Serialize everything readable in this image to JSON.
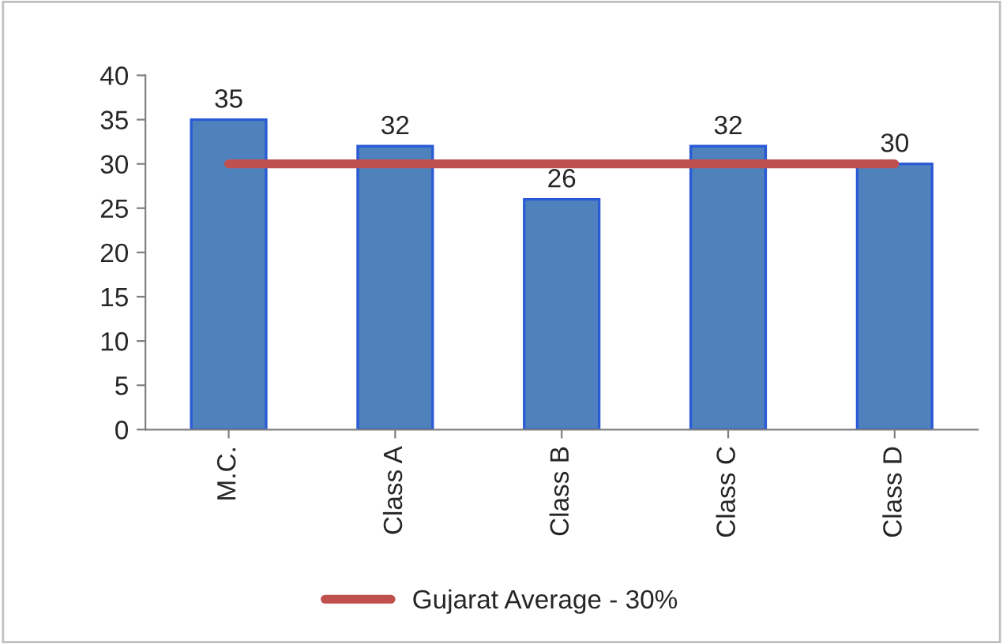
{
  "chart_data": {
    "type": "bar",
    "categories": [
      "M.C.",
      "Class A",
      "Class B",
      "Class C",
      "Class D"
    ],
    "series": [
      {
        "color": "#4f81bd",
        "values": [
          35,
          32,
          26,
          32,
          30
        ],
        "value_labels": [
          "35",
          "32",
          "26",
          "32",
          "30"
        ]
      },
      {
        "type": "line",
        "name": "Gujarat Average - 30%",
        "color": "#c0504d",
        "values": [
          30,
          30,
          30,
          30,
          30
        ]
      }
    ],
    "ylim": [
      0,
      40
    ],
    "yticks": [
      0,
      5,
      10,
      15,
      20,
      25,
      30,
      35,
      40
    ],
    "grid": false,
    "legend": "bottom",
    "marker": "none"
  }
}
